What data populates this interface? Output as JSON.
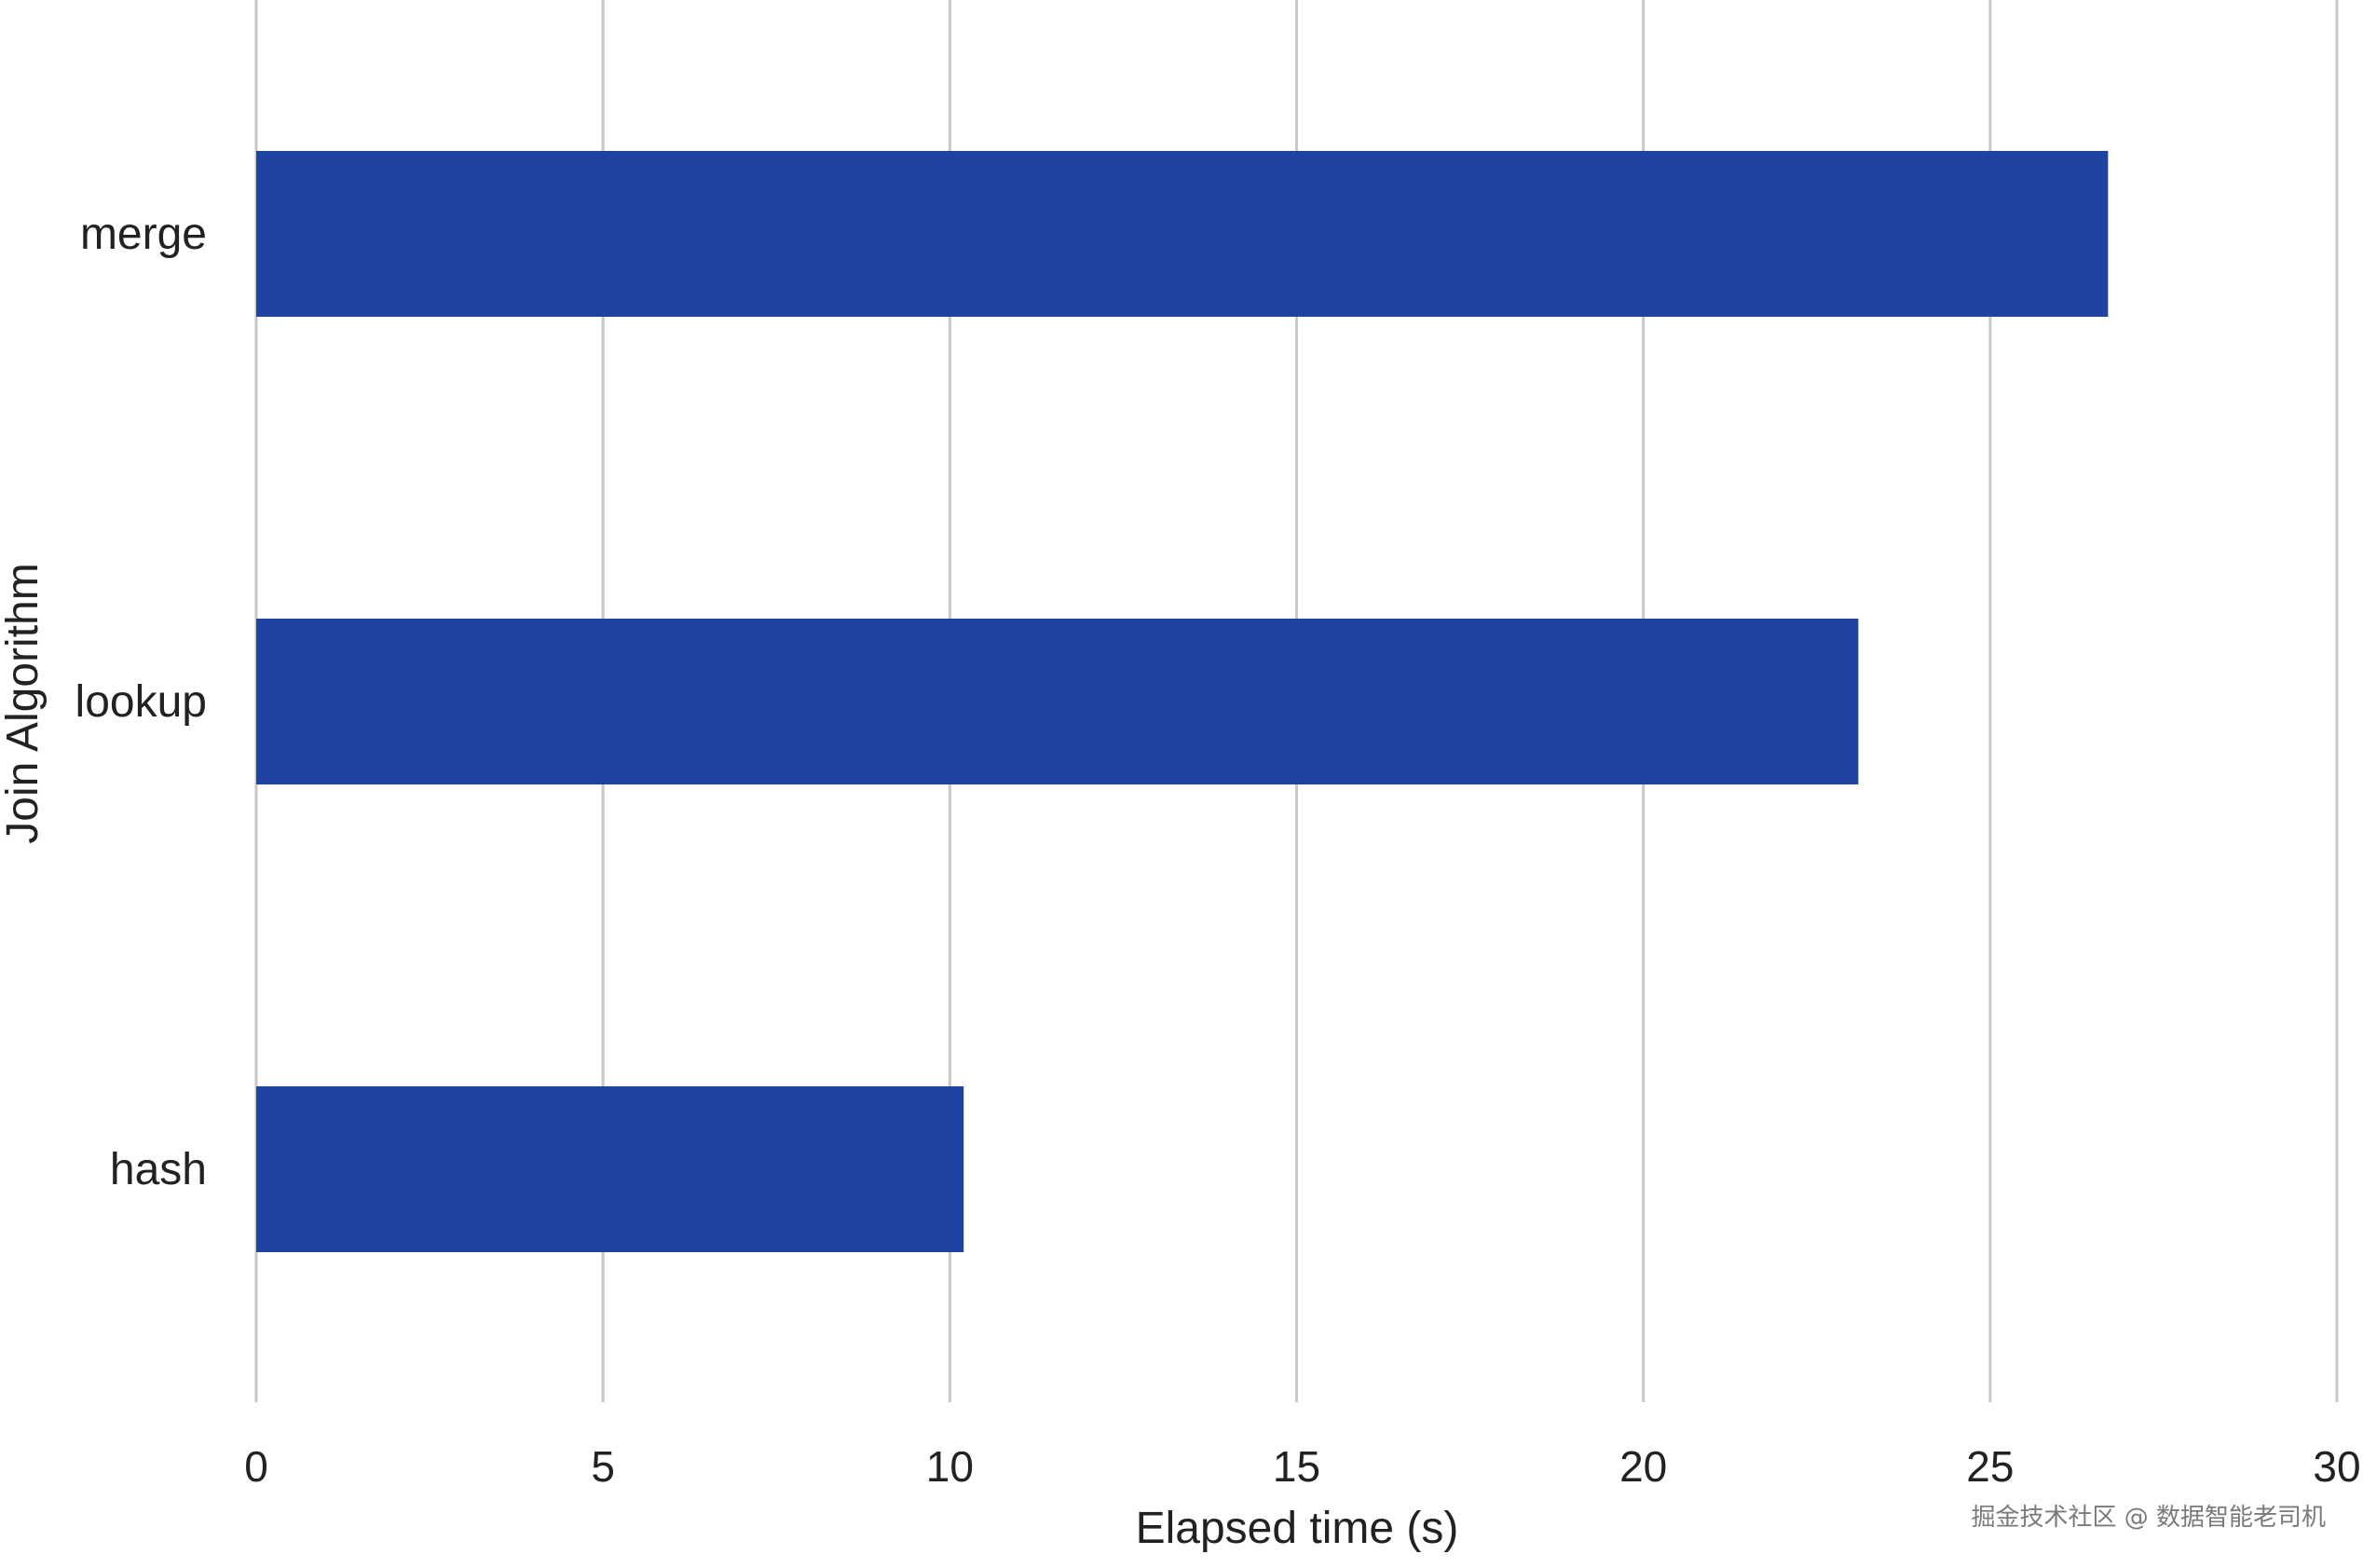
{
  "chart_data": {
    "type": "bar",
    "orientation": "horizontal",
    "categories": [
      "merge",
      "lookup",
      "hash"
    ],
    "values": [
      26.7,
      23.1,
      10.2
    ],
    "title": "",
    "xlabel": "Elapsed time (s)",
    "ylabel": "Join Algorithm",
    "xlim": [
      0,
      30
    ],
    "xticks": [
      0,
      5,
      10,
      15,
      20,
      25,
      30
    ],
    "grid": true,
    "legend": "none",
    "bar_color": "#1e43a3"
  },
  "watermark": "掘金技术社区 @ 数据智能老司机"
}
